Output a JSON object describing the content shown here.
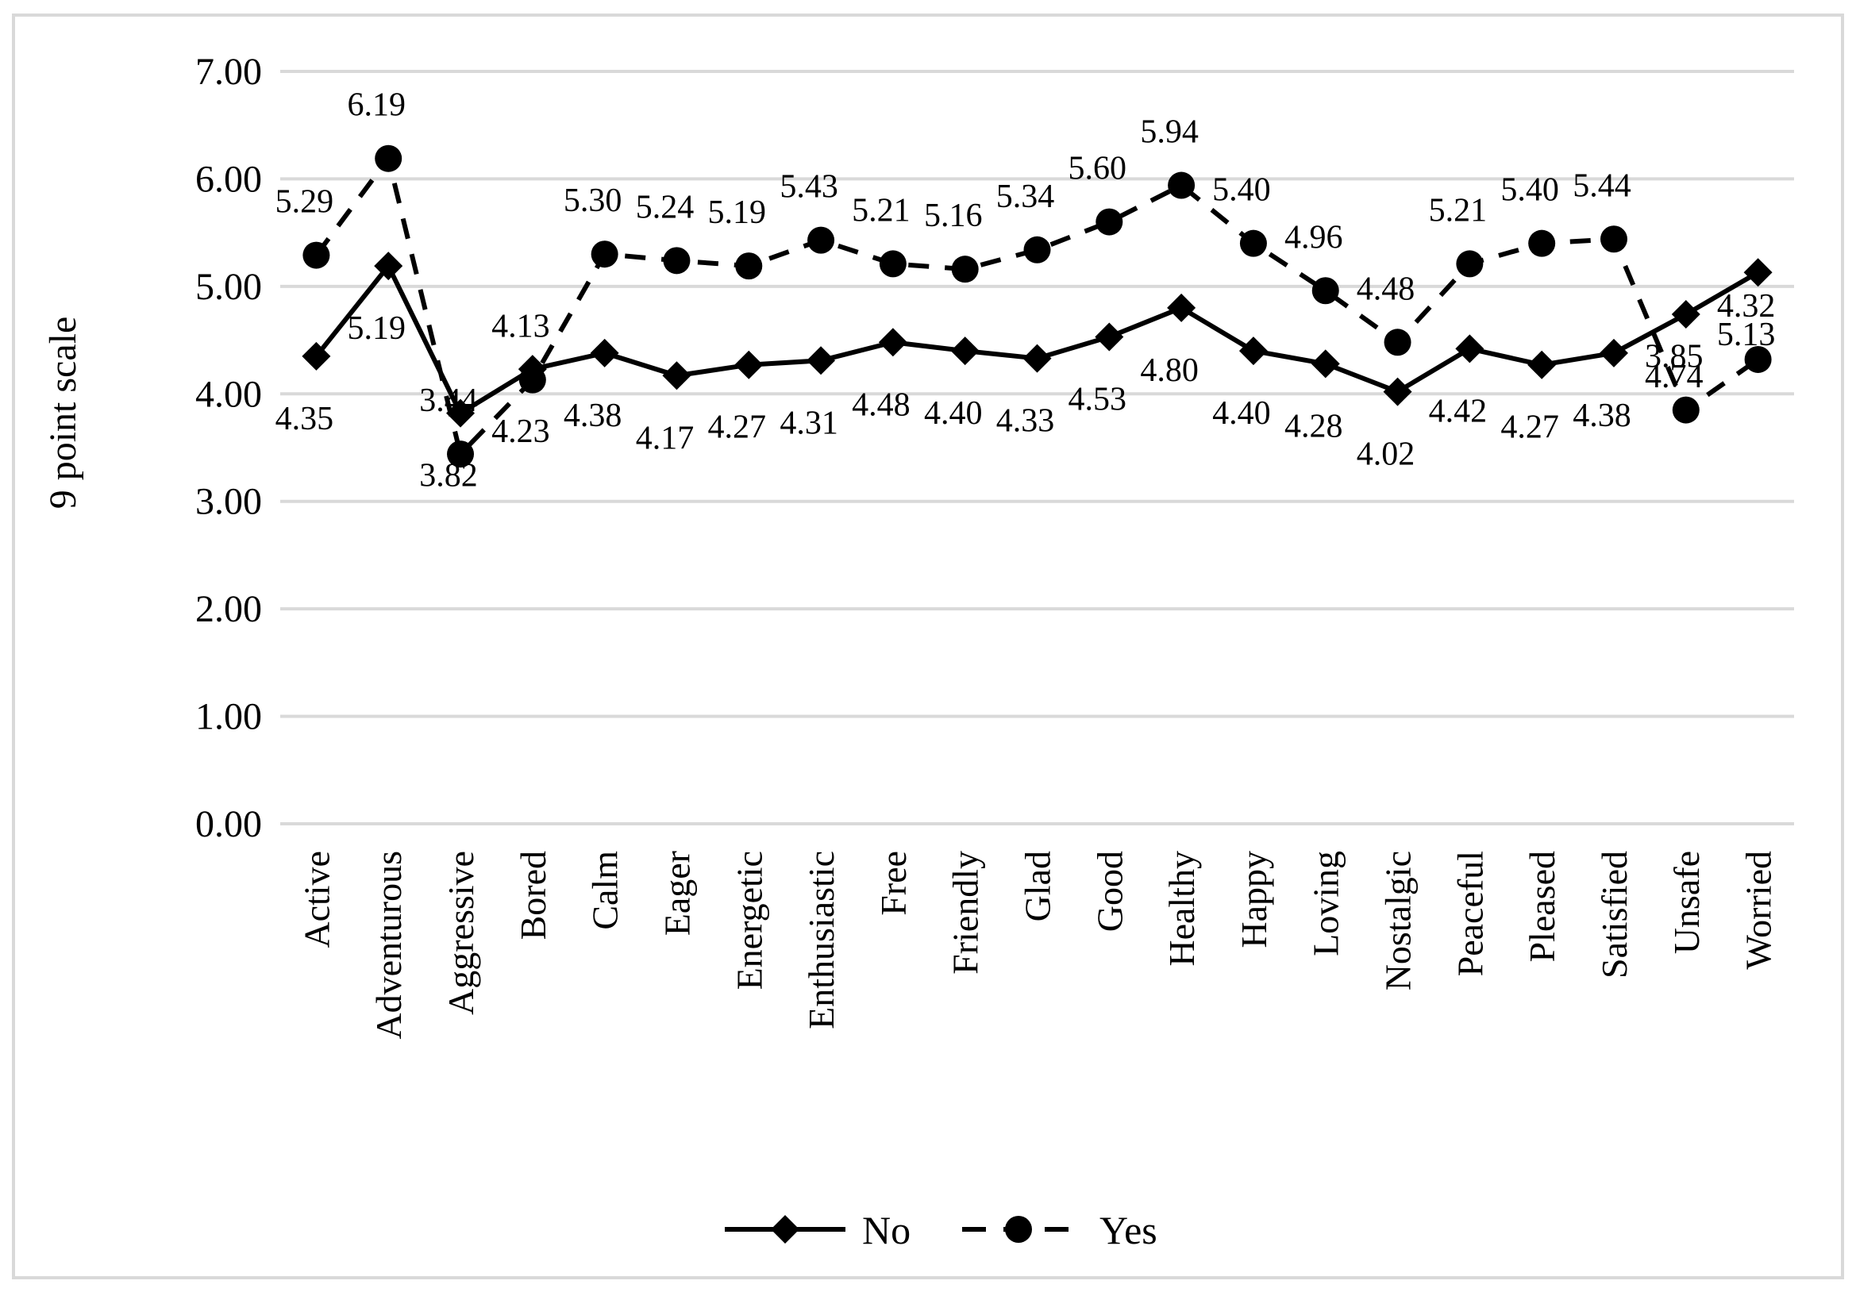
{
  "chart_data": {
    "type": "line",
    "title": "",
    "xlabel": "",
    "ylabel": "9 point scale",
    "ylim": [
      0,
      7
    ],
    "ytick_interval": 1,
    "ytick_labels": [
      "0.00",
      "1.00",
      "2.00",
      "3.00",
      "4.00",
      "5.00",
      "6.00",
      "7.00"
    ],
    "grid": true,
    "legend_position": "bottom",
    "value_label_decimals": 2,
    "categories": [
      "Active",
      "Adventurous",
      "Aggressive",
      "Bored",
      "Calm",
      "Eager",
      "Energetic",
      "Enthusiastic",
      "Free",
      "Friendly",
      "Glad",
      "Good",
      "Healthy",
      "Happy",
      "Loving",
      "Nostalgic",
      "Peaceful",
      "Pleased",
      "Satisfied",
      "Unsafe",
      "Worried"
    ],
    "series": [
      {
        "name": "No",
        "line_style": "solid",
        "marker": "diamond",
        "data_label_position": "below",
        "values": [
          4.35,
          5.19,
          3.82,
          4.23,
          4.38,
          4.17,
          4.27,
          4.31,
          4.48,
          4.4,
          4.33,
          4.53,
          4.8,
          4.4,
          4.28,
          4.02,
          4.42,
          4.27,
          4.38,
          4.74,
          5.13
        ]
      },
      {
        "name": "Yes",
        "line_style": "dashed",
        "marker": "circle",
        "data_label_position": "above",
        "values": [
          5.29,
          6.19,
          3.44,
          4.13,
          5.3,
          5.24,
          5.19,
          5.43,
          5.21,
          5.16,
          5.34,
          5.6,
          5.94,
          5.4,
          4.96,
          4.48,
          5.21,
          5.4,
          5.44,
          3.85,
          4.32
        ]
      }
    ],
    "colors": {
      "series_line": "#000000",
      "marker_fill": "#000000",
      "text": "#000000",
      "gridline": "#D9D9D9",
      "chart_border": "#D9D9D9",
      "background": "#FFFFFF"
    }
  }
}
